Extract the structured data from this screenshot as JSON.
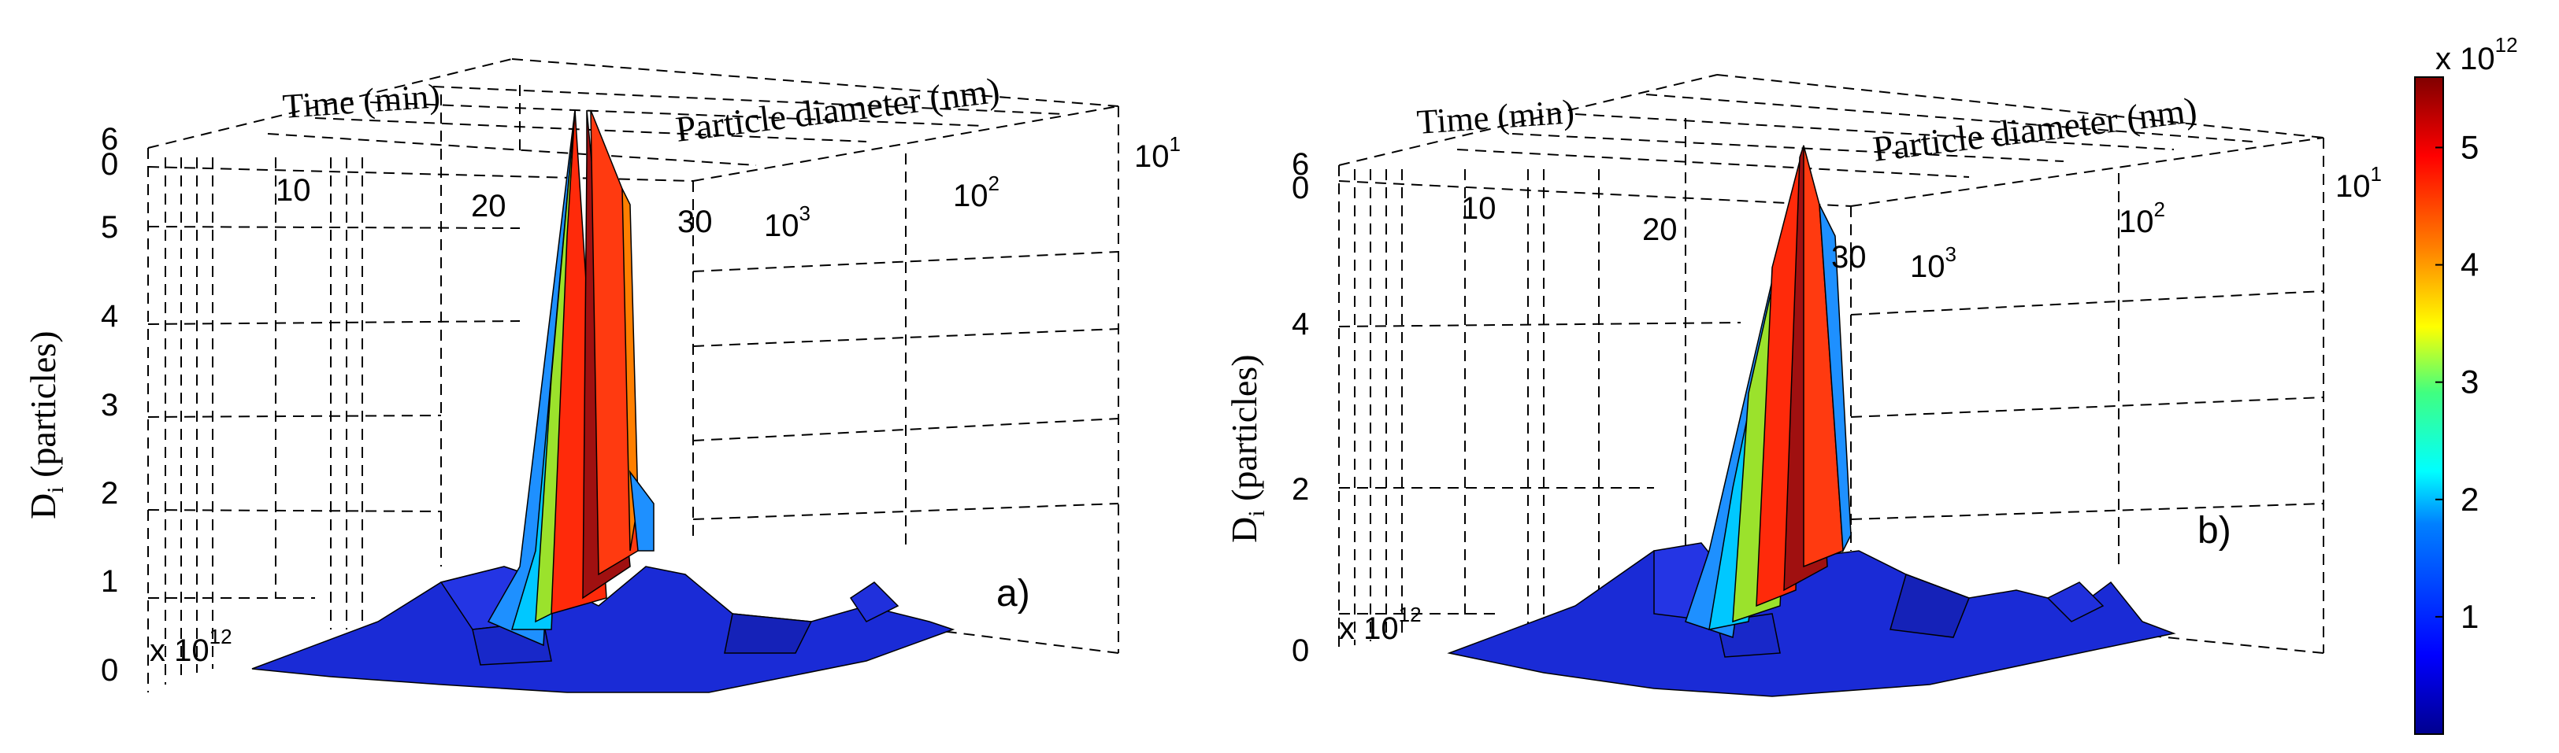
{
  "chart_data": [
    {
      "panel": "a)",
      "type": "surface",
      "xlabel": "Time (min)",
      "ylabel": "Particle diameter (nm)",
      "zlabel_main": "D",
      "zlabel_sub": "i",
      "zlabel_rest": " (particles)",
      "z_multiplier": "x 10",
      "z_multiplier_exp": "12",
      "x_ticks": [
        "0",
        "10",
        "20",
        "30"
      ],
      "y_ticks": [
        {
          "base": "10",
          "exp": "3"
        },
        {
          "base": "10",
          "exp": "2"
        },
        {
          "base": "10",
          "exp": "1"
        }
      ],
      "z_ticks": [
        "0",
        "1",
        "2",
        "3",
        "4",
        "5",
        "6"
      ],
      "zlim": [
        0,
        6
      ],
      "peak": {
        "time_min": 23,
        "value": 6.0
      },
      "grid": true
    },
    {
      "panel": "b)",
      "type": "surface",
      "xlabel": "Time (min)",
      "ylabel": "Particle diameter (nm)",
      "zlabel_main": "D",
      "zlabel_sub": "i",
      "zlabel_rest": " (particles)",
      "z_multiplier": "x 10",
      "z_multiplier_exp": "12",
      "x_ticks": [
        "0",
        "10",
        "20",
        "30"
      ],
      "y_ticks": [
        {
          "base": "10",
          "exp": "3"
        },
        {
          "base": "10",
          "exp": "2"
        },
        {
          "base": "10",
          "exp": "1"
        }
      ],
      "z_ticks": [
        "0",
        "2",
        "4",
        "6"
      ],
      "zlim": [
        0,
        6
      ],
      "peak": {
        "time_min": 26,
        "value": 6.0
      },
      "grid": true
    }
  ],
  "colorbar": {
    "multiplier": "x 10",
    "multiplier_exp": "12",
    "ticks": [
      "1",
      "2",
      "3",
      "4",
      "5"
    ],
    "range": [
      0,
      5.6
    ],
    "colormap": "jet"
  }
}
